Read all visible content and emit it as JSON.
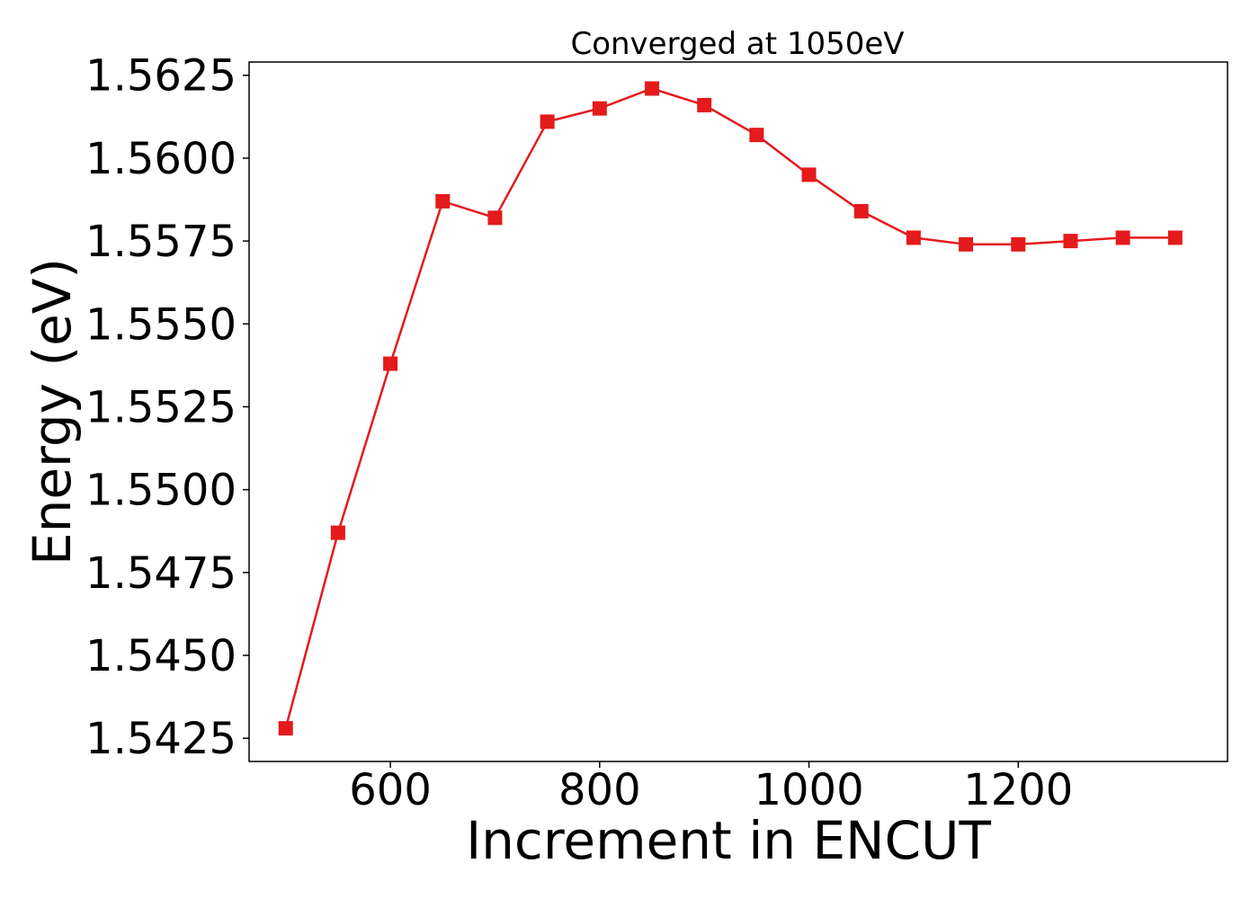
{
  "chart_data": {
    "type": "line",
    "title": "Converged at 1050eV",
    "xlabel": "Increment in ENCUT",
    "ylabel": "Energy (eV)",
    "xlim": [
      465,
      1400
    ],
    "ylim": [
      1.5418,
      1.5629
    ],
    "xticks": [
      600,
      800,
      1000,
      1200
    ],
    "yticks": [
      1.5425,
      1.545,
      1.5475,
      1.55,
      1.5525,
      1.555,
      1.5575,
      1.56,
      1.5625
    ],
    "x": [
      500,
      550,
      600,
      650,
      700,
      750,
      800,
      850,
      900,
      950,
      1000,
      1050,
      1100,
      1150,
      1200,
      1250,
      1300,
      1350
    ],
    "series": [
      {
        "color": "#e41a1c",
        "marker": "square",
        "values": [
          1.5428,
          1.5487,
          1.5538,
          1.5587,
          1.5582,
          1.5611,
          1.5615,
          1.5621,
          1.5616,
          1.5607,
          1.5595,
          1.5584,
          1.5576,
          1.5574,
          1.5574,
          1.5575,
          1.5576,
          1.5576
        ]
      }
    ],
    "grid": false,
    "legend": "none"
  }
}
